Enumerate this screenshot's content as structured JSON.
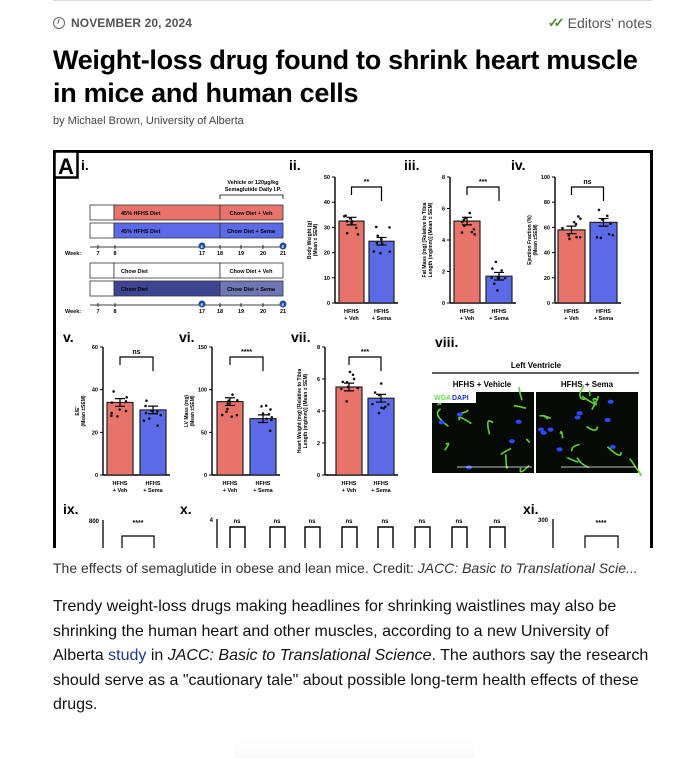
{
  "meta": {
    "date": "NOVEMBER 20, 2024",
    "editors_notes": "Editors' notes"
  },
  "article": {
    "title": "Weight-loss drug found to shrink heart muscle in mice and human cells",
    "byline": "by Michael Brown, University of Alberta",
    "caption_text": "The effects of semaglutide in obese and lean mice. Credit: ",
    "caption_credit": "JACC: Basic to Translational Scie...",
    "body": {
      "p1": "Trendy weight-loss drugs making headlines for shrinking waistlines may also be shrinking the human heart and other muscles, according to a new University of Alberta ",
      "link": "study",
      "p2": " in ",
      "journal": "JACC: Basic to Translational Science",
      "p3": ". The authors say the research should serve as a \"cautionary tale\" about possible long-term health effects of these drugs."
    }
  },
  "figure": {
    "letter": "A",
    "colors": {
      "veh": "#e8736b",
      "sema": "#5b6be8",
      "chow_sema": "#3d4592",
      "chow_sema_post": "#6e76b5"
    },
    "panel_i": {
      "label": "i.",
      "bracket_line1": "Vehicle or 120µg/kg",
      "bracket_line2": "Semaglutide Daily I.P.",
      "rows": [
        {
          "pre": "45% HFHS Diet",
          "post": "Chow Diet + Veh"
        },
        {
          "pre": "45% HFHS Diet",
          "post": "Chow Diet + Sema"
        },
        {
          "pre": "Chow Diet",
          "post": "Chow Diet + Veh"
        },
        {
          "pre": "Chow Diet",
          "post": "Chow Diet + Sema"
        }
      ],
      "week_label": "Week:",
      "weeks": [
        "7",
        "8",
        "17",
        "18",
        "19",
        "20",
        "21"
      ],
      "marker": "E"
    },
    "group_labels": {
      "veh_1": "HFHS",
      "veh_2": "+ Veh",
      "sema_1": "HFHS",
      "sema_2": "+ Sema"
    },
    "bar_panels": [
      {
        "label": "ii.",
        "ylabel1": "Body Weight (g)",
        "ylabel2": "(Mean ± SEM)",
        "ymax": 50,
        "ticks": [
          0,
          10,
          20,
          30,
          40,
          50
        ],
        "values": [
          32.5,
          24.5
        ],
        "sig": "**"
      },
      {
        "label": "iii.",
        "ylabel1": "Fat Mass (mg) [Relative to Tibia",
        "ylabel2": "Length (mg/mm)] (Mean ± SEM)",
        "ymax": 8,
        "ticks": [
          0,
          2,
          4,
          6,
          8
        ],
        "values": [
          5.2,
          1.7
        ],
        "sig": "***"
      },
      {
        "label": "iv.",
        "ylabel1": "Ejection Fraction (%)",
        "ylabel2": "(Mean ±SEM)",
        "ymax": 100,
        "ticks": [
          0,
          20,
          40,
          60,
          80,
          100
        ],
        "values": [
          58,
          64
        ],
        "sig": "ns"
      },
      {
        "label": "v.",
        "ylabel1": "E/E'",
        "ylabel2": "(Mean ±SEM)",
        "ymax": 60,
        "ticks": [
          0,
          20,
          40,
          60
        ],
        "values": [
          34,
          30.5
        ],
        "sig": "ns"
      },
      {
        "label": "vi.",
        "ylabel1": "LV Mass (mg)",
        "ylabel2": "(Mean ±SEM)",
        "ymax": 150,
        "ticks": [
          0,
          50,
          100,
          150
        ],
        "values": [
          86,
          66
        ],
        "sig": "****"
      },
      {
        "label": "vii.",
        "ylabel1": "Heart Weight (mg) [Relative to Tibia",
        "ylabel2": "Length (mg/mm)] (Mean ± SEM)",
        "ymax": 8,
        "ticks": [
          0,
          2,
          4,
          6,
          8
        ],
        "values": [
          5.5,
          4.8
        ],
        "sig": "***"
      }
    ],
    "panel_viii": {
      "label": "viii.",
      "title": "Left Ventricle",
      "left": "HFHS + Vehicle",
      "right": "HFHS + Sema",
      "stain1": "WGA",
      "stain2": "DAPI"
    },
    "panel_ix": {
      "label": "ix.",
      "top_tick": "800",
      "sig": "****"
    },
    "panel_x": {
      "label": "x.",
      "top_tick": "4",
      "sigs": [
        "ns",
        "ns",
        "ns",
        "ns",
        "ns",
        "ns",
        "ns",
        "ns"
      ]
    },
    "panel_xi": {
      "label": "xi.",
      "top_tick": "300",
      "sig": "****"
    }
  }
}
